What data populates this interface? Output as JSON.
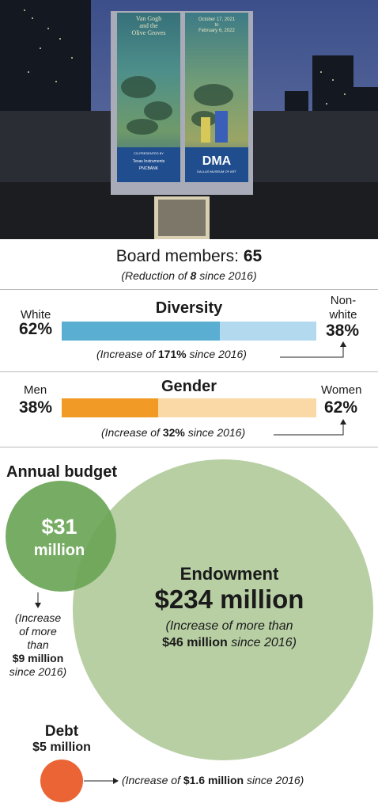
{
  "photo": {
    "banner_left": "Van Gogh and the Olive Groves",
    "banner_right_dates": [
      "October 17, 2021",
      "to",
      "February 6, 2022"
    ],
    "presented_by": "CO-PRESENTED BY",
    "sponsor_1": "Texas Instruments",
    "sponsor_2": "PNCBANK",
    "logo": "DMA",
    "logo_sub": "DALLAS MUSEUM OF ART"
  },
  "board": {
    "label": "Board members: ",
    "value": "65",
    "note_pre": "(Reduction of ",
    "note_bold": "8",
    "note_post": " since 2016)"
  },
  "chart_data": [
    {
      "type": "bar",
      "title": "Diversity",
      "categories": [
        "White",
        "Non-white"
      ],
      "values": [
        62,
        38
      ],
      "value_labels": [
        "62%",
        "38%"
      ],
      "colors": [
        "#5aaed2",
        "#b3d9ef"
      ],
      "note_pre": "(Increase of ",
      "note_bold": "171%",
      "note_post": " since 2016)"
    },
    {
      "type": "bar",
      "title": "Gender",
      "categories": [
        "Men",
        "Women"
      ],
      "values": [
        38,
        62
      ],
      "value_labels": [
        "38%",
        "62%"
      ],
      "colors": [
        "#f19a25",
        "#fbd9a6"
      ],
      "note_pre": "(Increase of ",
      "note_bold": "32%",
      "note_post": " since 2016)"
    },
    {
      "type": "bubble",
      "items": [
        {
          "name": "Annual budget",
          "value": 31,
          "value_label": "$31",
          "unit": "million",
          "color": "#6aa556",
          "note": [
            "(Increase",
            "of more",
            "than"
          ],
          "note_bold": "$9 million",
          "note_post": "since 2016)"
        },
        {
          "name": "Endowment",
          "value": 234,
          "value_label": "$234 million",
          "color": "#b8cfa4",
          "note_1": "(Increase of more than",
          "note_bold": "$46 million",
          "note_post": " since 2016)"
        },
        {
          "name": "Debt",
          "value": 5,
          "value_label": "$5 million",
          "color": "#eb6435",
          "note_pre": "(Increase of ",
          "note_bold": "$1.6 million",
          "note_post": " since 2016)"
        }
      ]
    }
  ]
}
